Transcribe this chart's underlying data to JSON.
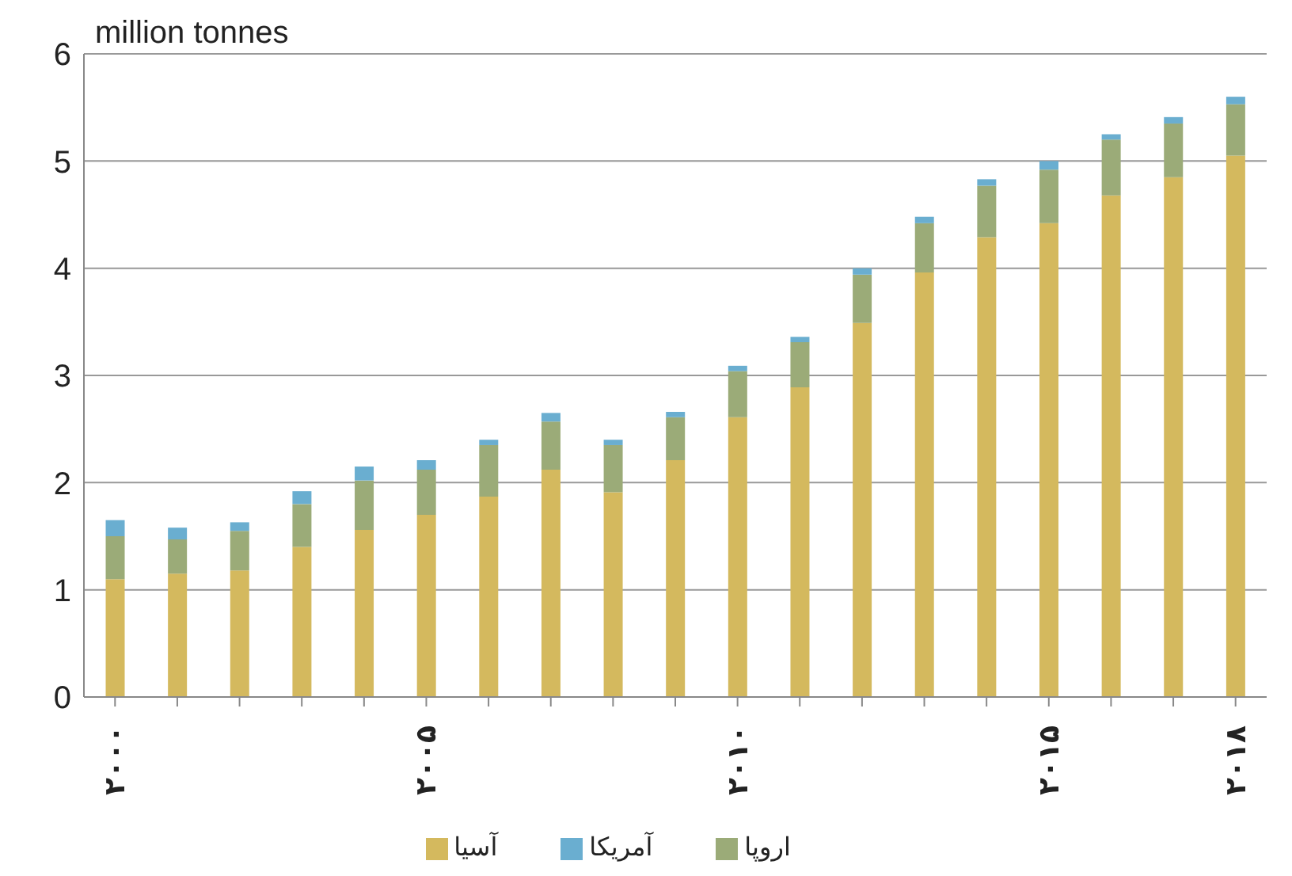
{
  "chart_data": {
    "type": "bar",
    "stacked": true,
    "ylabel": "million tonnes",
    "categories": [
      "۲۰۰۰",
      null,
      null,
      null,
      null,
      "۲۰۰۵",
      null,
      null,
      null,
      null,
      "۲۰۱۰",
      null,
      null,
      null,
      null,
      "۲۰۱۵",
      null,
      null,
      "۲۰۱۸"
    ],
    "series": [
      {
        "name": "آسیا",
        "color": "#d4b95e",
        "values": [
          1.1,
          1.15,
          1.18,
          1.4,
          1.56,
          1.7,
          1.87,
          2.12,
          1.91,
          2.21,
          2.61,
          2.89,
          3.49,
          3.96,
          4.29,
          4.42,
          4.68,
          4.85,
          5.05
        ]
      },
      {
        "name": "اروپا",
        "color": "#9bab78",
        "values": [
          0.4,
          0.32,
          0.37,
          0.4,
          0.46,
          0.42,
          0.48,
          0.45,
          0.44,
          0.4,
          0.43,
          0.42,
          0.45,
          0.46,
          0.48,
          0.5,
          0.52,
          0.5,
          0.48
        ]
      },
      {
        "name": "آمریکا",
        "color": "#6aaed0",
        "values": [
          0.15,
          0.11,
          0.08,
          0.12,
          0.13,
          0.09,
          0.05,
          0.08,
          0.05,
          0.05,
          0.05,
          0.05,
          0.06,
          0.06,
          0.06,
          0.08,
          0.05,
          0.06,
          0.07
        ]
      }
    ],
    "ylim": [
      0,
      6
    ],
    "yticks": [
      0,
      1,
      2,
      3,
      4,
      5,
      6
    ],
    "grid": "y",
    "legend": "bottom"
  }
}
